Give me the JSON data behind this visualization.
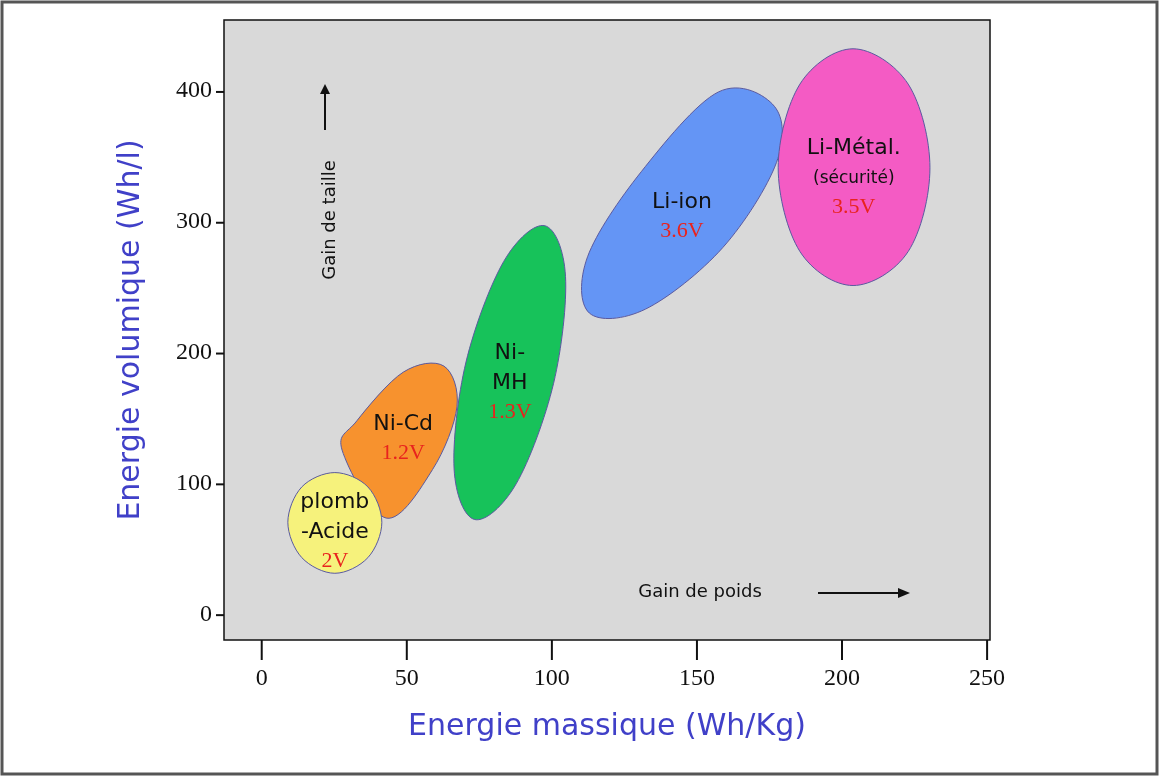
{
  "chart_data": {
    "type": "area",
    "xlabel": "Energie massique  (Wh/Kg)",
    "ylabel": "Energie volumique  (Wh/l)",
    "xlim": [
      -13,
      251
    ],
    "ylim": [
      -19,
      455
    ],
    "xticks": [
      0,
      50,
      100,
      150,
      200,
      250
    ],
    "yticks": [
      0,
      100,
      200,
      300,
      400
    ],
    "series": [
      {
        "name": "Ni-Cd",
        "color": "#f7922e",
        "x": [
          62.8,
          67.3,
          58.9,
          42.9,
          27.7,
          32.8,
          48.8
        ],
        "values": [
          190.4,
          159.5,
          111.4,
          74.2,
          126.2,
          148.6,
          185.8
        ]
      },
      {
        "name": "Ni- MH",
        "color": "#17c25a",
        "x": [
          97.6,
          104.7,
          100.6,
          87.7,
          73.4,
          66.3,
          70.4,
          83.4
        ],
        "values": [
          297.7,
          259,
          177.3,
          100.4,
          73.1,
          111.8,
          193.5,
          270.4
        ]
      },
      {
        "name": "Li-ion",
        "color": "#6495f5",
        "x": [
          176.7,
          177.4,
          158.9,
          132.3,
          112.9,
          112.3,
          130.8,
          157.4
        ],
        "values": [
          389,
          346,
          281,
          234,
          231,
          274,
          339,
          400
        ]
      },
      {
        "name": "Li-Métal. (sécurité)",
        "color": "#f45bc4",
        "x": [
          203.8,
          222.8,
          230.3,
          222.8,
          203.8,
          185.5,
          178,
          185.5
        ],
        "values": [
          433,
          406,
          342,
          278,
          252,
          278,
          342,
          406
        ]
      },
      {
        "name": "plomb -Acide",
        "color": "#f6f27c",
        "x": [
          25.2,
          36.6,
          41.4,
          36.6,
          25.2,
          13.8,
          9,
          13.8
        ],
        "values": [
          109,
          98,
          71,
          44,
          32,
          44,
          71,
          98
        ]
      }
    ],
    "annotations": [
      "Gain de taille",
      "Gain de poids",
      "1.2V",
      "1.3V",
      "3.6V",
      "3.5V",
      "2V"
    ]
  }
}
